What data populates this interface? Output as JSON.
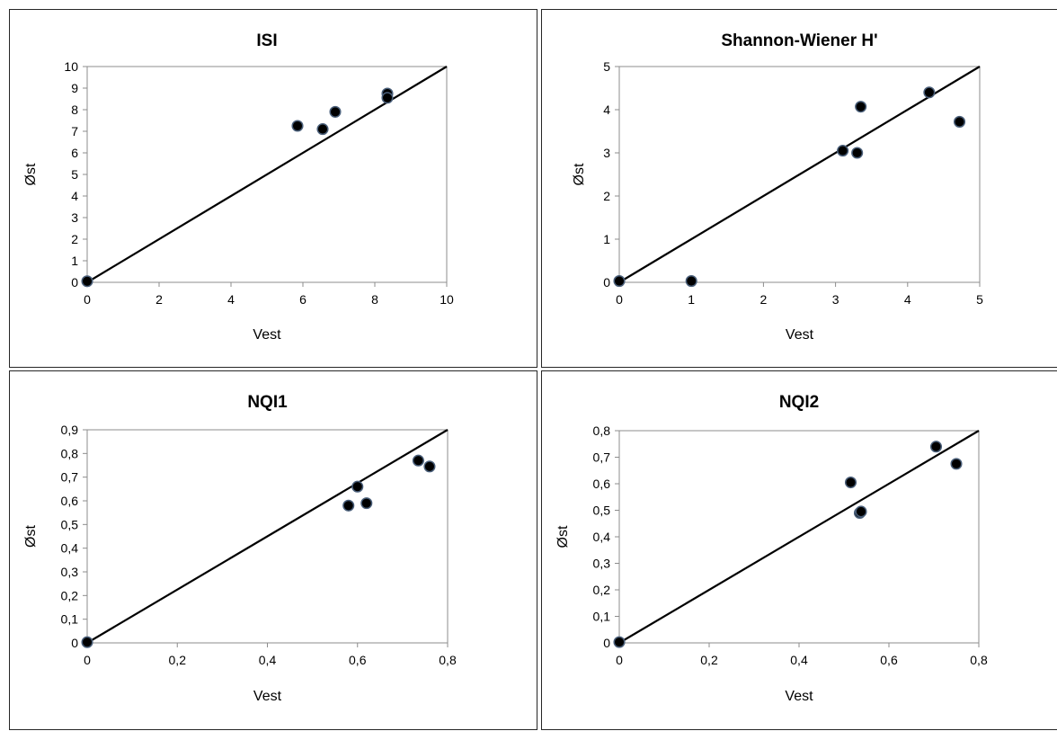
{
  "chart_data": [
    {
      "type": "scatter",
      "title": "ISI",
      "xlabel": "Vest",
      "ylabel": "Øst",
      "xlim": [
        0,
        10
      ],
      "ylim": [
        0,
        10
      ],
      "x_ticks": [
        "0",
        "2",
        "4",
        "6",
        "8",
        "10"
      ],
      "y_ticks": [
        "0",
        "1",
        "2",
        "3",
        "4",
        "5",
        "6",
        "7",
        "8",
        "9",
        "10"
      ],
      "reference_line": {
        "from": [
          0,
          0
        ],
        "to": [
          10,
          10
        ]
      },
      "series": [
        {
          "points": [
            [
              0,
              0.05
            ],
            [
              5.85,
              7.25
            ],
            [
              6.55,
              7.1
            ],
            [
              6.9,
              7.9
            ],
            [
              8.35,
              8.75
            ],
            [
              8.35,
              8.55
            ]
          ]
        }
      ],
      "grid": false
    },
    {
      "type": "scatter",
      "title": "Shannon-Wiener  H'",
      "xlabel": "Vest",
      "ylabel": "Øst",
      "xlim": [
        0,
        5
      ],
      "ylim": [
        0,
        5
      ],
      "x_ticks": [
        "0",
        "1",
        "2",
        "3",
        "4",
        "5"
      ],
      "y_ticks": [
        "0",
        "1",
        "2",
        "3",
        "4",
        "5"
      ],
      "reference_line": {
        "from": [
          0,
          0
        ],
        "to": [
          5,
          5
        ]
      },
      "series": [
        {
          "points": [
            [
              0,
              0.03
            ],
            [
              1.0,
              0.03
            ],
            [
              3.1,
              3.05
            ],
            [
              3.3,
              3.0
            ],
            [
              3.35,
              4.07
            ],
            [
              4.3,
              4.4
            ],
            [
              4.72,
              3.72
            ]
          ]
        }
      ],
      "grid": false
    },
    {
      "type": "scatter",
      "title": "NQI1",
      "xlabel": "Vest",
      "ylabel": "Øst",
      "xlim": [
        0,
        0.8
      ],
      "ylim": [
        0,
        0.9
      ],
      "x_ticks": [
        "0",
        "0,2",
        "0,4",
        "0,6",
        "0,8"
      ],
      "y_ticks": [
        "0",
        "0,1",
        "0,2",
        "0,3",
        "0,4",
        "0,5",
        "0,6",
        "0,7",
        "0,8",
        "0,9"
      ],
      "reference_line": {
        "from": [
          0,
          0
        ],
        "to": [
          0.8,
          0.9
        ]
      },
      "series": [
        {
          "points": [
            [
              0,
              0.003
            ],
            [
              0.58,
              0.58
            ],
            [
              0.6,
              0.66
            ],
            [
              0.62,
              0.59
            ],
            [
              0.735,
              0.77
            ],
            [
              0.76,
              0.745
            ]
          ]
        }
      ],
      "grid": false
    },
    {
      "type": "scatter",
      "title": "NQI2",
      "xlabel": "Vest",
      "ylabel": "Øst",
      "xlim": [
        0,
        0.8
      ],
      "ylim": [
        0,
        0.8
      ],
      "x_ticks": [
        "0",
        "0,2",
        "0,4",
        "0,6",
        "0,8"
      ],
      "y_ticks": [
        "0",
        "0,1",
        "0,2",
        "0,3",
        "0,4",
        "0,5",
        "0,6",
        "0,7",
        "0,8"
      ],
      "reference_line": {
        "from": [
          0,
          0
        ],
        "to": [
          0.8,
          0.8
        ]
      },
      "series": [
        {
          "points": [
            [
              0,
              0.003
            ],
            [
              0.515,
              0.605
            ],
            [
              0.535,
              0.49
            ],
            [
              0.538,
              0.495
            ],
            [
              0.705,
              0.74
            ],
            [
              0.75,
              0.675
            ]
          ]
        }
      ],
      "grid": false
    }
  ],
  "colors": {
    "marker_fill": "#000000",
    "marker_edge": "#4a5f7a",
    "line": "#000000",
    "axis": "#8c8c8c",
    "frame": "#262626"
  }
}
